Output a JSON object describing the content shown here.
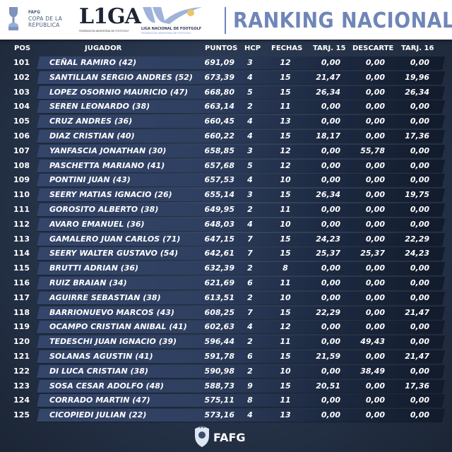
{
  "header": {
    "fafg_small": "FAFG",
    "copa_line1": "COPA DE LA",
    "copa_line2": "REPÚBLICA",
    "liga_word": "L1GA",
    "liga_sub": "FEDERACIÓN ARGENTINA DE FOOTGOLF",
    "lnf_line1": "LIGA NACIONAL DE FOOTGOLF",
    "lnf_line2": "FEDERACIÓN ARGENTINA DE FOOTGOLF",
    "title": "RANKING NACIONAL"
  },
  "table": {
    "columns": {
      "pos": "POS",
      "jugador": "JUGADOR",
      "puntos": "PUNTOS",
      "hcp": "HCP",
      "fechas": "FECHAS",
      "tarj15": "TARJ. 15",
      "descarte": "DESCARTE",
      "tarj16": "TARJ. 16"
    },
    "rows": [
      {
        "pos": "101",
        "name": "CEÑAL RAMIRO (42)",
        "pts": "691,09",
        "hcp": "3",
        "fech": "12",
        "t15": "0,00",
        "desc": "0,00",
        "t16": "0,00"
      },
      {
        "pos": "102",
        "name": "SANTILLAN SERGIO ANDRES (52)",
        "pts": "673,39",
        "hcp": "4",
        "fech": "15",
        "t15": "21,47",
        "desc": "0,00",
        "t16": "19,96"
      },
      {
        "pos": "103",
        "name": "LOPEZ OSORNIO MAURICIO (47)",
        "pts": "668,80",
        "hcp": "5",
        "fech": "15",
        "t15": "26,34",
        "desc": "0,00",
        "t16": "26,34"
      },
      {
        "pos": "104",
        "name": "SEREN LEONARDO (38)",
        "pts": "663,14",
        "hcp": "2",
        "fech": "11",
        "t15": "0,00",
        "desc": "0,00",
        "t16": "0,00"
      },
      {
        "pos": "105",
        "name": "CRUZ ANDRES (36)",
        "pts": "660,45",
        "hcp": "4",
        "fech": "13",
        "t15": "0,00",
        "desc": "0,00",
        "t16": "0,00"
      },
      {
        "pos": "106",
        "name": "DIAZ CRISTIAN (40)",
        "pts": "660,22",
        "hcp": "4",
        "fech": "15",
        "t15": "18,17",
        "desc": "0,00",
        "t16": "17,36"
      },
      {
        "pos": "107",
        "name": "YANFASCIA JONATHAN (30)",
        "pts": "658,85",
        "hcp": "3",
        "fech": "12",
        "t15": "0,00",
        "desc": "55,78",
        "t16": "0,00"
      },
      {
        "pos": "108",
        "name": "PASCHETTA MARIANO (41)",
        "pts": "657,68",
        "hcp": "5",
        "fech": "12",
        "t15": "0,00",
        "desc": "0,00",
        "t16": "0,00"
      },
      {
        "pos": "109",
        "name": "PONTINI JUAN (43)",
        "pts": "657,53",
        "hcp": "4",
        "fech": "10",
        "t15": "0,00",
        "desc": "0,00",
        "t16": "0,00"
      },
      {
        "pos": "110",
        "name": "SEERY MATIAS IGNACIO (26)",
        "pts": "655,14",
        "hcp": "3",
        "fech": "15",
        "t15": "26,34",
        "desc": "0,00",
        "t16": "19,75"
      },
      {
        "pos": "111",
        "name": "GOROSITO ALBERTO (38)",
        "pts": "649,95",
        "hcp": "2",
        "fech": "11",
        "t15": "0,00",
        "desc": "0,00",
        "t16": "0,00"
      },
      {
        "pos": "112",
        "name": "AVARO EMANUEL (36)",
        "pts": "648,03",
        "hcp": "4",
        "fech": "10",
        "t15": "0,00",
        "desc": "0,00",
        "t16": "0,00"
      },
      {
        "pos": "113",
        "name": "GAMALERO JUAN CARLOS (71)",
        "pts": "647,15",
        "hcp": "7",
        "fech": "15",
        "t15": "24,23",
        "desc": "0,00",
        "t16": "22,29"
      },
      {
        "pos": "114",
        "name": "SEERY WALTER GUSTAVO (54)",
        "pts": "642,61",
        "hcp": "7",
        "fech": "15",
        "t15": "25,37",
        "desc": "25,37",
        "t16": "24,23"
      },
      {
        "pos": "115",
        "name": "BRUTTI ADRIAN (36)",
        "pts": "632,39",
        "hcp": "2",
        "fech": "8",
        "t15": "0,00",
        "desc": "0,00",
        "t16": "0,00"
      },
      {
        "pos": "116",
        "name": "RUIZ BRAIAN (34)",
        "pts": "621,69",
        "hcp": "6",
        "fech": "11",
        "t15": "0,00",
        "desc": "0,00",
        "t16": "0,00"
      },
      {
        "pos": "117",
        "name": "AGUIRRE SEBASTIAN (38)",
        "pts": "613,51",
        "hcp": "2",
        "fech": "10",
        "t15": "0,00",
        "desc": "0,00",
        "t16": "0,00"
      },
      {
        "pos": "118",
        "name": "BARRIONUEVO MARCOS (43)",
        "pts": "608,25",
        "hcp": "7",
        "fech": "15",
        "t15": "22,29",
        "desc": "0,00",
        "t16": "21,47"
      },
      {
        "pos": "119",
        "name": "OCAMPO CRISTIAN ANIBAL (41)",
        "pts": "602,63",
        "hcp": "4",
        "fech": "12",
        "t15": "0,00",
        "desc": "0,00",
        "t16": "0,00"
      },
      {
        "pos": "120",
        "name": "TEDESCHI JUAN IGNACIO (39)",
        "pts": "596,44",
        "hcp": "2",
        "fech": "11",
        "t15": "0,00",
        "desc": "49,43",
        "t16": "0,00"
      },
      {
        "pos": "121",
        "name": "SOLANAS AGUSTIN (41)",
        "pts": "591,78",
        "hcp": "6",
        "fech": "15",
        "t15": "21,59",
        "desc": "0,00",
        "t16": "21,47"
      },
      {
        "pos": "122",
        "name": "DI LUCA CRISTIAN (38)",
        "pts": "590,98",
        "hcp": "2",
        "fech": "10",
        "t15": "0,00",
        "desc": "38,49",
        "t16": "0,00"
      },
      {
        "pos": "123",
        "name": "SOSA CESAR ADOLFO (48)",
        "pts": "588,73",
        "hcp": "9",
        "fech": "15",
        "t15": "20,51",
        "desc": "0,00",
        "t16": "17,36"
      },
      {
        "pos": "124",
        "name": "CORRADO MARTIN (47)",
        "pts": "575,11",
        "hcp": "8",
        "fech": "11",
        "t15": "0,00",
        "desc": "0,00",
        "t16": "0,00"
      },
      {
        "pos": "125",
        "name": "CICOPIEDI JULIAN (22)",
        "pts": "573,16",
        "hcp": "4",
        "fech": "13",
        "t15": "0,00",
        "desc": "0,00",
        "t16": "0,00"
      }
    ]
  },
  "footer": {
    "logo_text": "FAFG"
  },
  "colors": {
    "title": "#6f86b8",
    "bar": "#34456a",
    "background": "#233044"
  }
}
